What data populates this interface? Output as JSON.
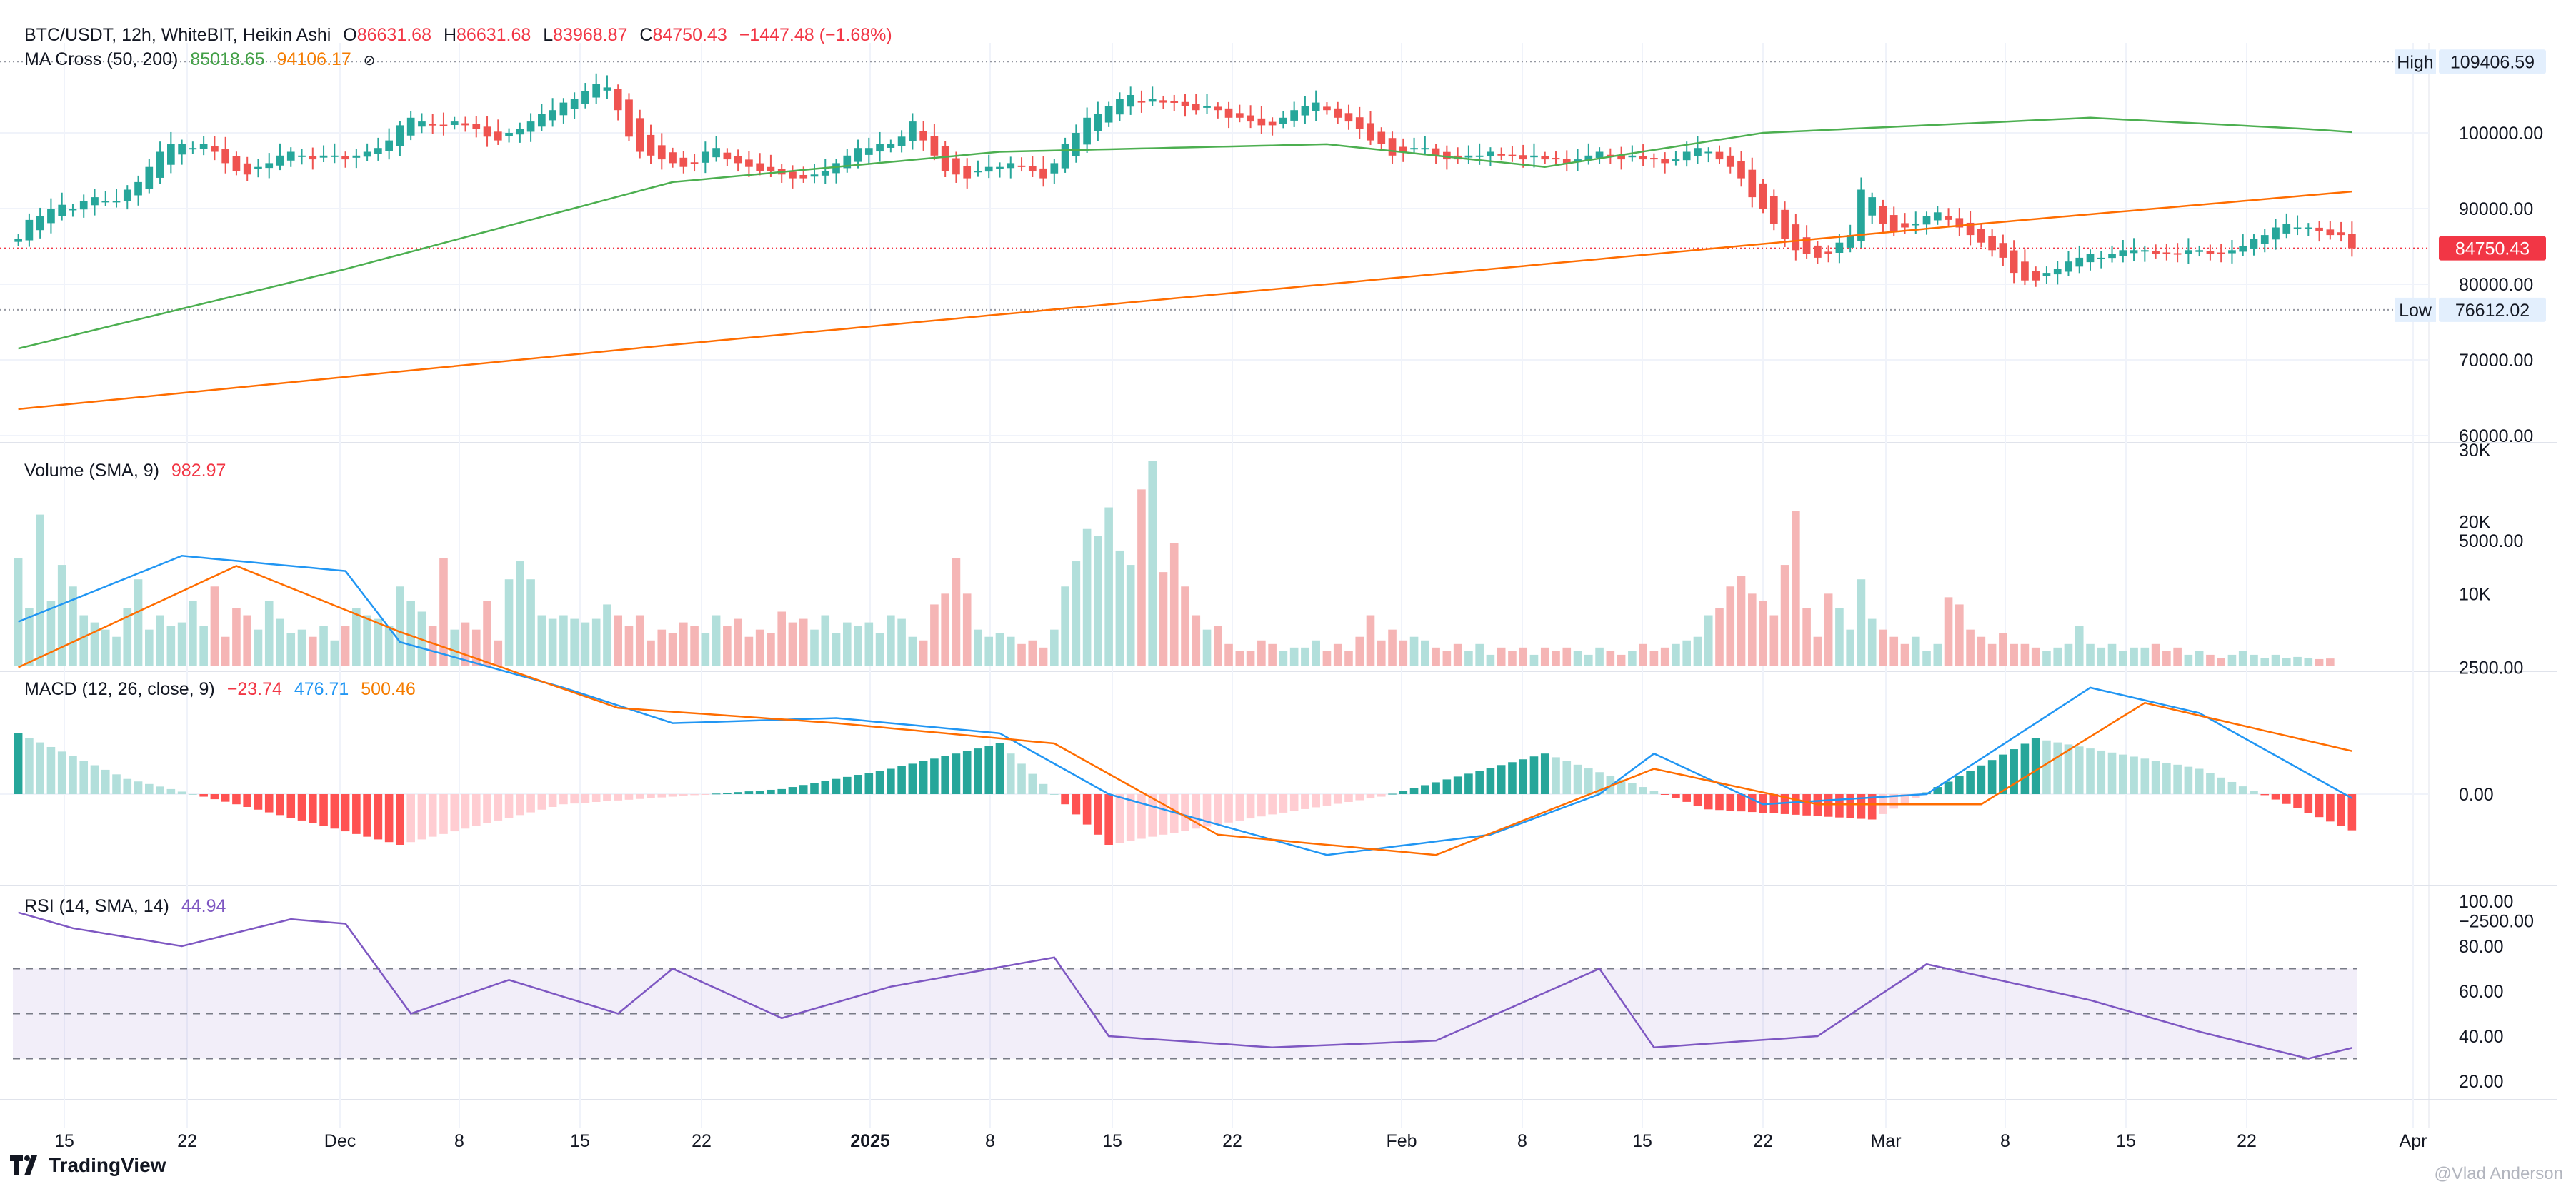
{
  "header": {
    "symbol": "BTC/USDT, 12h, WhiteBIT, Heikin Ashi",
    "o_label": "O",
    "o_value": "86631.68",
    "h_label": "H",
    "h_value": "86631.68",
    "l_label": "L",
    "l_value": "83968.87",
    "c_label": "C",
    "c_value": "84750.43",
    "change": "−1447.48 (−1.68%)"
  },
  "ma_legend": {
    "name": "MA Cross (50, 200)",
    "ma50": "85018.65",
    "ma200": "94106.17",
    "eye_icon": "eye-off-icon"
  },
  "volume_legend": {
    "name": "Volume (SMA, 9)",
    "value": "982.97"
  },
  "macd_legend": {
    "name": "MACD (12, 26, close, 9)",
    "hist": "−23.74",
    "macd": "476.71",
    "signal": "500.46"
  },
  "rsi_legend": {
    "name": "RSI (14, SMA, 14)",
    "value": "44.94"
  },
  "price_axis": {
    "high_label": "High",
    "high_value": "109406.59",
    "low_label": "Low",
    "low_value": "76612.02",
    "last_value": "84750.43",
    "ticks": [
      "100000.00",
      "90000.00",
      "80000.00",
      "70000.00",
      "60000.00"
    ]
  },
  "volume_axis": {
    "ticks": [
      "30K",
      "20K",
      "10K"
    ]
  },
  "macd_axis": {
    "ticks": [
      "5000.00",
      "2500.00",
      "0.00",
      "−2500.00"
    ]
  },
  "rsi_axis": {
    "ticks": [
      "100.00",
      "80.00",
      "60.00",
      "40.00",
      "20.00"
    ]
  },
  "time_axis": {
    "labels": [
      "15",
      "22",
      "Dec",
      "8",
      "15",
      "22",
      "2025",
      "8",
      "15",
      "22",
      "Feb",
      "8",
      "15",
      "22",
      "Mar",
      "8",
      "15",
      "22",
      "Apr"
    ],
    "bold": [
      "2025"
    ]
  },
  "footer": {
    "brand": "TradingView",
    "logo_icon": "tradingview-logo-icon",
    "watermark": "@Vlad Anderson"
  },
  "colors": {
    "up": "#26a69a",
    "down": "#ef5350",
    "ma50": "#4caf50",
    "ma200": "#ff6d00",
    "macd": "#2196f3",
    "signal": "#ff6d00",
    "rsi": "#7e57c2",
    "rsi_band": "#7e57c2"
  },
  "chart_data": [
    {
      "type": "candlestick",
      "title": "BTC/USDT, 12h, WhiteBIT, Heikin Ashi",
      "ylim": [
        60000,
        110000
      ],
      "x_start": "2024-11-12",
      "x_end": "2025-03-29",
      "close": [
        86000,
        88500,
        89000,
        90000,
        90500,
        90000,
        91000,
        91500,
        91000,
        91000,
        92500,
        93500,
        95500,
        97500,
        98500,
        98500,
        98000,
        98500,
        97500,
        96000,
        95000,
        94500,
        95500,
        96000,
        97000,
        97500,
        97000,
        96500,
        97000,
        97000,
        96500,
        97000,
        97500,
        98000,
        99000,
        101000,
        102000,
        101500,
        101000,
        101000,
        101500,
        101000,
        100500,
        99500,
        99000,
        100000,
        100500,
        101500,
        102500,
        103000,
        104000,
        104500,
        105500,
        106500,
        106000,
        103000,
        99500,
        97500,
        97000,
        96500,
        96000,
        95500,
        96000,
        97500,
        98000,
        96500,
        96000,
        95500,
        95000,
        95000,
        94500,
        94000,
        94000,
        94500,
        95000,
        96000,
        97000,
        98000,
        98000,
        98500,
        98500,
        99500,
        101500,
        99000,
        97000,
        95000,
        94500,
        94000,
        95000,
        95500,
        95500,
        96000,
        95500,
        95000,
        94000,
        96000,
        98500,
        100000,
        102000,
        102500,
        103500,
        104500,
        105000,
        104000,
        104500,
        104000,
        104000,
        103500,
        103000,
        103500,
        103000,
        102000,
        102000,
        101500,
        101000,
        101000,
        102000,
        103000,
        103500,
        104000,
        103000,
        102000,
        101500,
        100500,
        99000,
        98500,
        97000,
        97500,
        98000,
        98000,
        97000,
        96500,
        96500,
        97000,
        97000,
        97500,
        97000,
        97000,
        96500,
        97000,
        96500,
        96500,
        96000,
        96500,
        97000,
        97500,
        97000,
        96500,
        97000,
        96500,
        96500,
        96000,
        96500,
        97500,
        98000,
        97500,
        96500,
        95500,
        94000,
        91500,
        90000,
        88000,
        86000,
        84500,
        84000,
        83500,
        84000,
        85500,
        86500,
        92500,
        91500,
        88000,
        87000,
        87500,
        88000,
        89000,
        89500,
        88500,
        87500,
        86500,
        85500,
        84500,
        83500,
        81500,
        80500,
        80500,
        81500,
        82000,
        83000,
        83500,
        84000,
        83500,
        84000,
        84500,
        84500,
        84500,
        84000,
        84000,
        84000,
        84500,
        84500,
        84000,
        84000,
        84500,
        85000,
        86000,
        86500,
        87500,
        88000,
        87500,
        87500,
        87000,
        86500,
        86500,
        84750
      ]
    },
    {
      "type": "line",
      "title": "MA Cross (50, 200)",
      "series": [
        {
          "name": "MA 50",
          "points": [
            [
              0,
              71500
            ],
            [
              30,
              82000
            ],
            [
              60,
              93500
            ],
            [
              90,
              97500
            ],
            [
              120,
              98500
            ],
            [
              140,
              95500
            ],
            [
              160,
              100000
            ],
            [
              190,
              102000
            ],
            [
              210,
              100500
            ],
            [
              240,
              97500
            ],
            [
              270,
              96500
            ],
            [
              280,
              93000
            ],
            [
              300,
              88500
            ],
            [
              320,
              85000
            ],
            [
              340,
              84500
            ],
            [
              352,
              85000
            ]
          ]
        },
        {
          "name": "MA 200",
          "points": [
            [
              0,
              63500
            ],
            [
              60,
              72000
            ],
            [
              120,
              80000
            ],
            [
              180,
              88000
            ],
            [
              240,
              95500
            ],
            [
              265,
              98500
            ],
            [
              300,
              97000
            ],
            [
              352,
              94106
            ]
          ]
        }
      ]
    },
    {
      "type": "bar",
      "title": "Volume (SMA, 9)",
      "ylim": [
        0,
        30000
      ],
      "values": [
        15000,
        8000,
        21000,
        9000,
        14000,
        11000,
        7000,
        6000,
        5000,
        4000,
        8000,
        12000,
        5000,
        7000,
        5500,
        6000,
        9000,
        5500,
        11000,
        4000,
        8000,
        7000,
        5000,
        9000,
        6500,
        4500,
        5000,
        4000,
        5500,
        3500,
        5500,
        8000,
        7000,
        6500,
        5500,
        11000,
        9000,
        7500,
        5500,
        15000,
        5000,
        6000,
        5000,
        9000,
        3500,
        12000,
        14500,
        12000,
        7000,
        6500,
        7000,
        6500,
        6000,
        6500,
        8500,
        7000,
        5500,
        7000,
        3500,
        5000,
        4500,
        6000,
        5500,
        4500,
        7000,
        5500,
        6500,
        4000,
        5000,
        4500,
        7500,
        6000,
        6500,
        5000,
        7000,
        4500,
        6000,
        5500,
        6000,
        4500,
        7000,
        6500,
        4000,
        3500,
        8500,
        10000,
        15000,
        10000,
        5000,
        4000,
        4500,
        4000,
        3000,
        3500,
        2500,
        5000,
        11000,
        14500,
        19000,
        18000,
        22000,
        16000,
        14000,
        24500,
        28500,
        13000,
        17000,
        11000,
        7000,
        5000,
        5500,
        3000,
        2000,
        2000,
        3500,
        3000,
        2000,
        2500,
        2500,
        3500,
        2000,
        3000,
        2000,
        4000,
        7000,
        3500,
        5000,
        3500,
        4000,
        3500,
        2500,
        2000,
        3000,
        2000,
        3000,
        1500,
        2500,
        2000,
        2500,
        1500,
        2500,
        2000,
        2500,
        2000,
        1500,
        2500,
        2000,
        1500,
        2000,
        3000,
        2000,
        2500,
        3000,
        3500,
        4000,
        7000,
        8000,
        11000,
        12500,
        10000,
        9000,
        7000,
        14000,
        21500,
        8000,
        4000,
        10000,
        8000,
        5000,
        12000,
        6500,
        5000,
        4000,
        3000,
        4000,
        2000,
        3000,
        9500,
        8500,
        5000,
        4000,
        3000,
        4500,
        3000,
        3000,
        2500,
        2000,
        2500,
        3000,
        5500,
        3000,
        2500,
        3000,
        2000,
        2500,
        2500,
        3000,
        2000,
        2500,
        1500,
        2000,
        1500,
        1000,
        1500,
        2000,
        1500,
        1000,
        1500,
        1000,
        1200,
        1000,
        900,
        980
      ]
    },
    {
      "type": "line",
      "title": "MACD (12, 26, close, 9)",
      "ylim": [
        -4000,
        5000
      ],
      "series": [
        {
          "name": "MACD",
          "points": [
            [
              0,
              3400
            ],
            [
              15,
              4700
            ],
            [
              30,
              4400
            ],
            [
              35,
              3000
            ],
            [
              50,
              2100
            ],
            [
              60,
              1400
            ],
            [
              75,
              1500
            ],
            [
              90,
              1200
            ],
            [
              100,
              0
            ],
            [
              120,
              -1200
            ],
            [
              135,
              -800
            ],
            [
              145,
              0
            ],
            [
              150,
              800
            ],
            [
              160,
              -200
            ],
            [
              175,
              0
            ],
            [
              190,
              2100
            ],
            [
              200,
              1600
            ],
            [
              215,
              -200
            ],
            [
              230,
              -1000
            ],
            [
              245,
              -500
            ],
            [
              260,
              -200
            ],
            [
              270,
              -400
            ],
            [
              280,
              -3400
            ],
            [
              300,
              -1200
            ],
            [
              320,
              -2200
            ],
            [
              340,
              -500
            ],
            [
              352,
              477
            ]
          ]
        },
        {
          "name": "Signal",
          "points": [
            [
              0,
              2500
            ],
            [
              20,
              4500
            ],
            [
              35,
              3200
            ],
            [
              55,
              1700
            ],
            [
              75,
              1400
            ],
            [
              95,
              1000
            ],
            [
              110,
              -800
            ],
            [
              130,
              -1200
            ],
            [
              150,
              500
            ],
            [
              165,
              -200
            ],
            [
              180,
              -200
            ],
            [
              195,
              1800
            ],
            [
              215,
              800
            ],
            [
              235,
              -1100
            ],
            [
              260,
              -600
            ],
            [
              275,
              -500
            ],
            [
              290,
              -2900
            ],
            [
              310,
              -1500
            ],
            [
              330,
              -1200
            ],
            [
              350,
              700
            ],
            [
              352,
              500
            ]
          ]
        },
        {
          "name": "Histogram",
          "points": [
            [
              0,
              1200
            ],
            [
              10,
              300
            ],
            [
              20,
              -200
            ],
            [
              35,
              -1000
            ],
            [
              50,
              -200
            ],
            [
              70,
              100
            ],
            [
              80,
              500
            ],
            [
              90,
              1000
            ],
            [
              100,
              -1000
            ],
            [
              115,
              -400
            ],
            [
              125,
              -50
            ],
            [
              140,
              800
            ],
            [
              155,
              -300
            ],
            [
              170,
              -500
            ],
            [
              185,
              1100
            ],
            [
              200,
              500
            ],
            [
              215,
              -800
            ],
            [
              230,
              -200
            ],
            [
              245,
              200
            ],
            [
              265,
              200
            ],
            [
              280,
              -1200
            ],
            [
              295,
              500
            ],
            [
              310,
              400
            ],
            [
              330,
              700
            ],
            [
              345,
              200
            ],
            [
              352,
              -24
            ]
          ]
        }
      ]
    },
    {
      "type": "line",
      "title": "RSI (14, SMA, 14)",
      "ylim": [
        0,
        100
      ],
      "bands": [
        30,
        50,
        70
      ],
      "series": [
        {
          "name": "RSI",
          "points": [
            [
              0,
              95
            ],
            [
              5,
              88
            ],
            [
              15,
              80
            ],
            [
              25,
              92
            ],
            [
              30,
              90
            ],
            [
              36,
              50
            ],
            [
              45,
              65
            ],
            [
              55,
              50
            ],
            [
              60,
              70
            ],
            [
              70,
              48
            ],
            [
              80,
              62
            ],
            [
              95,
              75
            ],
            [
              100,
              40
            ],
            [
              115,
              35
            ],
            [
              130,
              38
            ],
            [
              145,
              70
            ],
            [
              150,
              35
            ],
            [
              165,
              40
            ],
            [
              175,
              72
            ],
            [
              190,
              56
            ],
            [
              200,
              42
            ],
            [
              210,
              30
            ],
            [
              220,
              42
            ],
            [
              235,
              35
            ],
            [
              245,
              48
            ],
            [
              260,
              55
            ],
            [
              270,
              30
            ],
            [
              280,
              8
            ],
            [
              290,
              55
            ],
            [
              300,
              52
            ],
            [
              310,
              35
            ],
            [
              320,
              48
            ],
            [
              330,
              55
            ],
            [
              345,
              58
            ],
            [
              352,
              45
            ]
          ]
        }
      ]
    }
  ]
}
